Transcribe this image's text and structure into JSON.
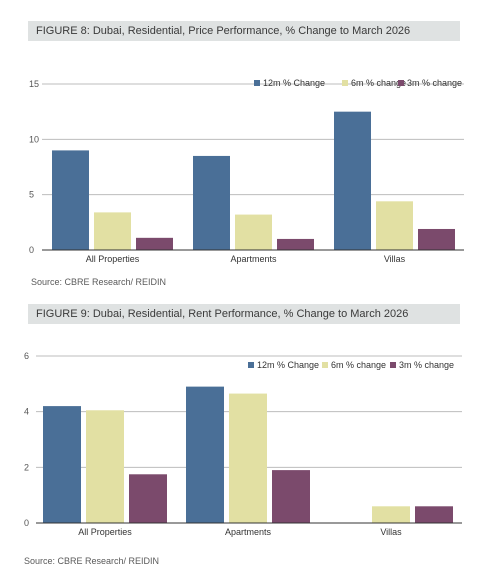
{
  "figure1": {
    "title": "FIGURE 8: Dubai, Residential, Price Performance, % Change to March 2026",
    "source": "Source: CBRE Research/ REIDIN"
  },
  "figure2": {
    "title": "FIGURE 9: Dubai, Residential, Rent Performance, % Change to March 2026",
    "source": "Source: CBRE Research/ REIDIN"
  },
  "colors": {
    "12m": "#4a6f97",
    "6m": "#e2e0a3",
    "3m": "#7b4a6c",
    "grid": "#bdbdbd",
    "axis": "#333333"
  },
  "chart_data": [
    {
      "type": "bar",
      "categories": [
        "All Properties",
        "Apartments",
        "Villas"
      ],
      "series": [
        {
          "name": "12m % Change",
          "values": [
            9.0,
            8.5,
            12.5
          ]
        },
        {
          "name": "6m % change",
          "values": [
            3.4,
            3.2,
            4.4
          ]
        },
        {
          "name": "3m % change",
          "values": [
            1.1,
            1.0,
            1.9
          ]
        }
      ],
      "yticks": [
        "15",
        "10",
        "5",
        "0"
      ],
      "ylim": [
        0,
        15
      ],
      "grid": true,
      "legend": "top-right"
    },
    {
      "type": "bar",
      "categories": [
        "All Properties",
        "Apartments",
        "Villas"
      ],
      "series": [
        {
          "name": "12m % Change",
          "values": [
            4.2,
            4.9,
            null
          ]
        },
        {
          "name": "6m % change",
          "values": [
            4.05,
            4.65,
            0.6
          ]
        },
        {
          "name": "3m % change",
          "values": [
            1.75,
            1.9,
            0.6
          ]
        }
      ],
      "yticks": [
        "6",
        "4",
        "2",
        "0"
      ],
      "ylim": [
        0,
        6
      ],
      "grid": true,
      "legend": "top-right"
    }
  ]
}
